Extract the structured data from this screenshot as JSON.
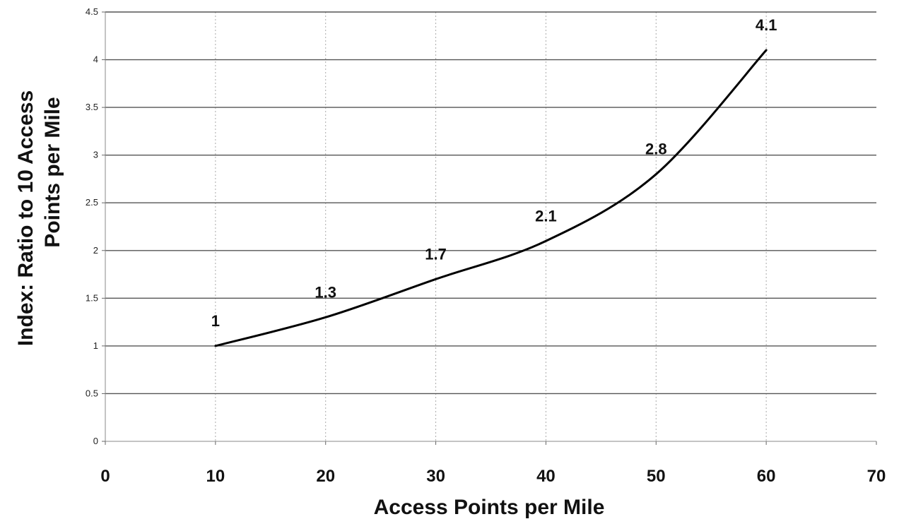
{
  "chart_data": {
    "type": "line",
    "title": "",
    "xlabel": "Access Points per Mile",
    "ylabel_lines": [
      "Index:  Ratio to 10 Access",
      "Points per Mile"
    ],
    "xlim": [
      0,
      70
    ],
    "ylim": [
      0,
      4.5
    ],
    "x_ticks": [
      "0",
      "10",
      "20",
      "30",
      "40",
      "50",
      "60",
      "70"
    ],
    "y_ticks": [
      "0",
      "0.5",
      "1",
      "1.5",
      "2",
      "2.5",
      "3",
      "3.5",
      "4",
      "4.5"
    ],
    "grid": {
      "horizontal": "solid",
      "vertical": "dotted"
    },
    "legend": "none",
    "series": [
      {
        "x": [
          10,
          20,
          30,
          40,
          50,
          60
        ],
        "values": [
          1,
          1.3,
          1.7,
          2.1,
          2.8,
          4.1
        ],
        "labels": [
          "1",
          "1.3",
          "1.7",
          "2.1",
          "2.8",
          "4.1"
        ],
        "color": "#000000"
      }
    ]
  }
}
